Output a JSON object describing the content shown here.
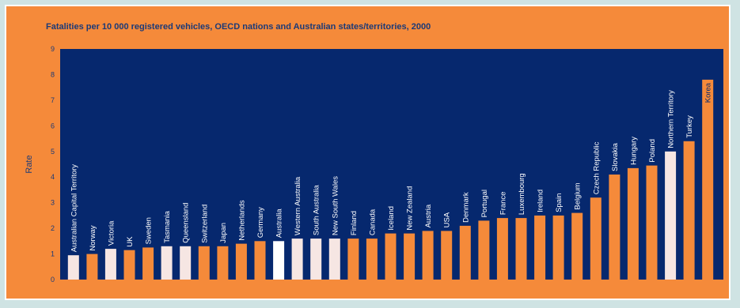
{
  "chart_data": {
    "type": "bar",
    "title": "Fatalities per 10 000 registered vehicles, OECD nations and Australian states/territories, 2000",
    "xlabel": "",
    "ylabel": "Rate",
    "ylim": [
      0,
      9
    ],
    "yticks": [
      0,
      1,
      2,
      3,
      4,
      5,
      6,
      7,
      8,
      9
    ],
    "grid": false,
    "categories": [
      "Australian Capital Territory",
      "Norway",
      "Victoria",
      "UK",
      "Sweden",
      "Tasmania",
      "Queensland",
      "Switzerland",
      "Japan",
      "Netherlands",
      "Germany",
      "Australia",
      "Western Australia",
      "South Australia",
      "New South Wales",
      "Finland",
      "Canada",
      "Iceland",
      "New Zealand",
      "Austria",
      "USA",
      "Denmark",
      "Portugal",
      "France",
      "Luxembourg",
      "Ireland",
      "Spain",
      "Belgium",
      "Czech Republic",
      "Slovakia",
      "Hungary",
      "Poland",
      "Northern Territory",
      "Turkey",
      "Korea"
    ],
    "values": [
      0.95,
      1.0,
      1.2,
      1.15,
      1.25,
      1.3,
      1.3,
      1.3,
      1.3,
      1.4,
      1.5,
      1.5,
      1.6,
      1.6,
      1.6,
      1.6,
      1.6,
      1.8,
      1.8,
      1.9,
      1.9,
      2.1,
      2.3,
      2.4,
      2.4,
      2.5,
      2.5,
      2.6,
      3.2,
      4.1,
      4.35,
      4.45,
      5.0,
      5.4,
      7.8
    ],
    "group": [
      "state",
      "oecd",
      "state",
      "oecd",
      "oecd",
      "state",
      "state",
      "oecd",
      "oecd",
      "oecd",
      "oecd",
      "australia",
      "state",
      "state",
      "state",
      "oecd",
      "oecd",
      "oecd",
      "oecd",
      "oecd",
      "oecd",
      "oecd",
      "oecd",
      "oecd",
      "oecd",
      "oecd",
      "oecd",
      "oecd",
      "oecd",
      "oecd",
      "oecd",
      "oecd",
      "state",
      "oecd",
      "oecd"
    ]
  },
  "colors": {
    "frame": "#f58a3a",
    "plot_background": "#06286e",
    "oecd_bar": "#f58a3a",
    "state_bar": "#f6e6e3",
    "australia_bar": "#ffffff",
    "title_text": "#1b3a78",
    "label_text": "#ffffff"
  }
}
